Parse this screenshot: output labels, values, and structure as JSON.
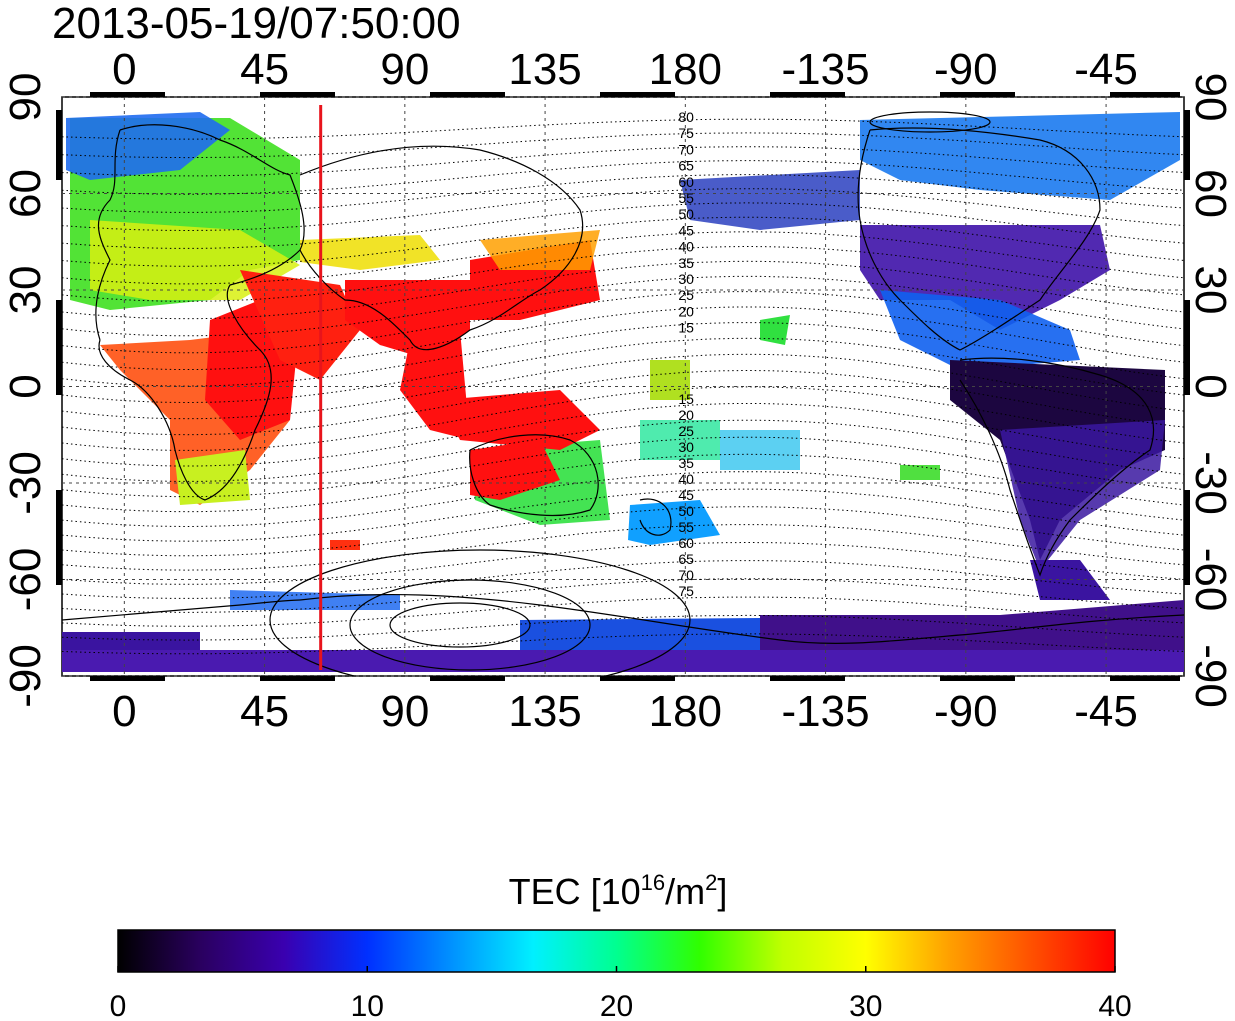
{
  "title": "2013-05-19/07:50:00",
  "map": {
    "x_ticks": [
      "0",
      "45",
      "90",
      "135",
      "180",
      "-135",
      "-90",
      "-45"
    ],
    "x_tick_lons": [
      0,
      45,
      90,
      135,
      180,
      225,
      270,
      315
    ],
    "y_ticks": [
      "90",
      "60",
      "30",
      "0",
      "-30",
      "-60",
      "-90"
    ],
    "y_tick_lats": [
      90,
      60,
      30,
      0,
      -30,
      -60,
      -90
    ],
    "lon_range": [
      -20,
      340
    ],
    "lat_range": [
      -90,
      90
    ],
    "grid": true,
    "terminator_longitude": 63,
    "terminator_color": "#e8141c",
    "contour_labels_north": [
      "80",
      "75",
      "70",
      "65",
      "60",
      "55",
      "50",
      "45",
      "40",
      "35",
      "30",
      "25",
      "20",
      "15"
    ],
    "contour_labels_south": [
      "15",
      "20",
      "25",
      "30",
      "35",
      "40",
      "45",
      "50",
      "55",
      "60",
      "65",
      "70",
      "75"
    ]
  },
  "colorbar": {
    "title": "TEC  [10",
    "title_sup1": "16",
    "title_mid": "/m",
    "title_sup2": "2",
    "title_end": "]",
    "min": 0,
    "max": 40,
    "ticks": [
      "0",
      "10",
      "20",
      "30",
      "40"
    ],
    "colors": [
      "#000000",
      "#2a0060",
      "#3a00b0",
      "#0030ff",
      "#0090ff",
      "#00f0ff",
      "#00ff90",
      "#30ff00",
      "#c0ff00",
      "#ffff00",
      "#ffa000",
      "#ff5000",
      "#ff0000"
    ]
  }
}
